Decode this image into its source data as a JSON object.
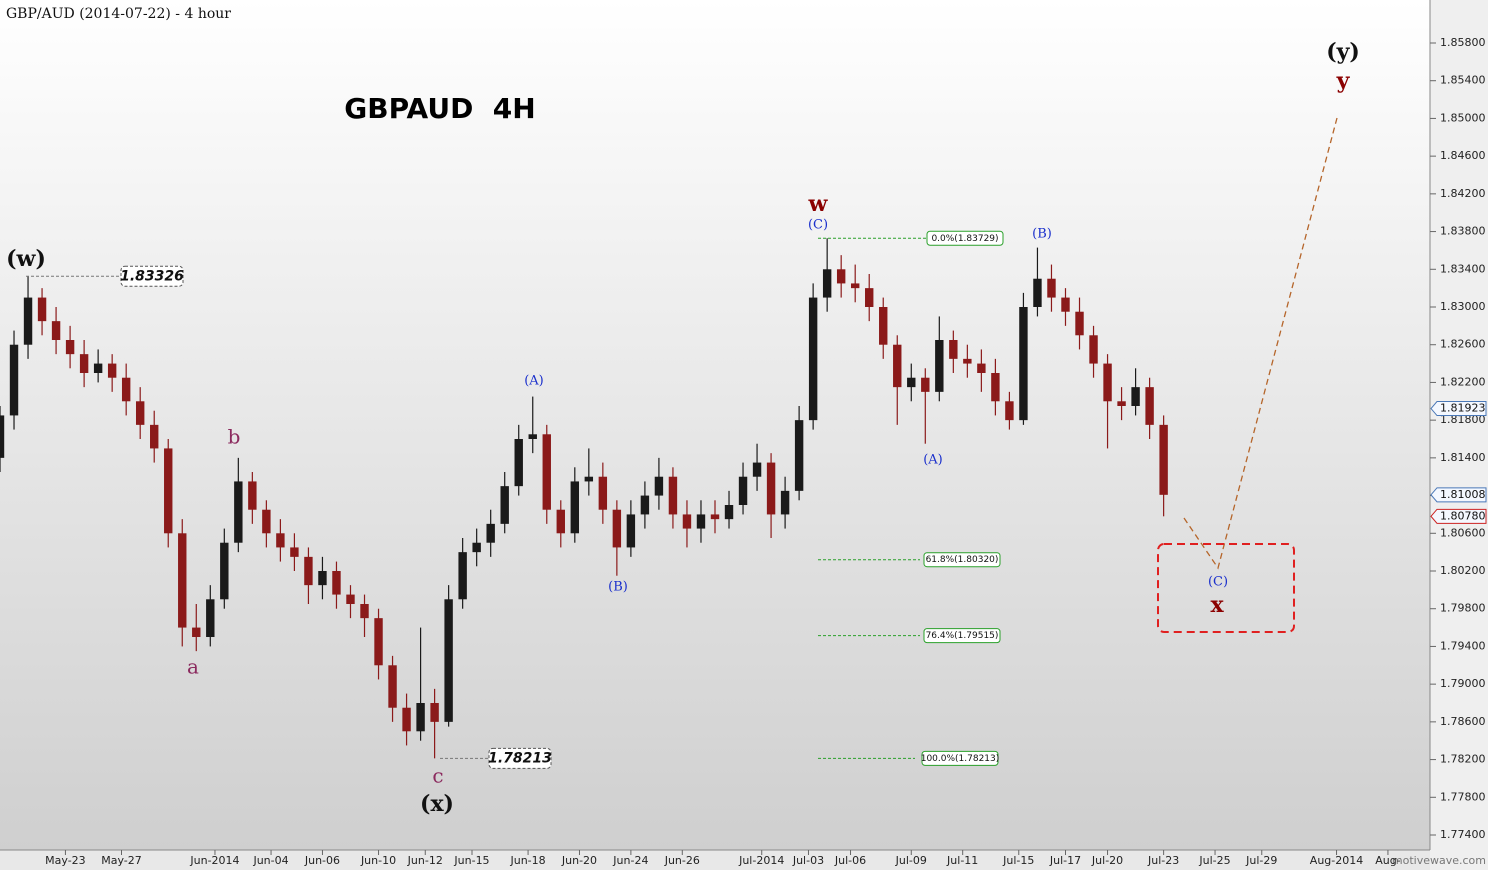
{
  "chart_data": {
    "type": "candlestick",
    "title": "GBP/AUD (2014-07-22) - 4 hour",
    "subtitle": "GBPAUD  4H",
    "watermark": "motivewave.com",
    "up_color": "#1a1a1a",
    "down_color": "#8b1a1a",
    "xlim": [
      0,
      306
    ],
    "ylim": [
      1.77241,
      1.86256
    ],
    "xticks": [
      {
        "value": 14,
        "label": "May-23"
      },
      {
        "value": 26,
        "label": "May-27"
      },
      {
        "value": 46,
        "label": "Jun-2014"
      },
      {
        "value": 58,
        "label": "Jun-04"
      },
      {
        "value": 69,
        "label": "Jun-06"
      },
      {
        "value": 81,
        "label": "Jun-10"
      },
      {
        "value": 91,
        "label": "Jun-12"
      },
      {
        "value": 101,
        "label": "Jun-15"
      },
      {
        "value": 113,
        "label": "Jun-18"
      },
      {
        "value": 124,
        "label": "Jun-20"
      },
      {
        "value": 135,
        "label": "Jun-24"
      },
      {
        "value": 146,
        "label": "Jun-26"
      },
      {
        "value": 163,
        "label": "Jul-2014"
      },
      {
        "value": 173,
        "label": "Jul-03"
      },
      {
        "value": 182,
        "label": "Jul-06"
      },
      {
        "value": 195,
        "label": "Jul-09"
      },
      {
        "value": 206,
        "label": "Jul-11"
      },
      {
        "value": 218,
        "label": "Jul-15"
      },
      {
        "value": 228,
        "label": "Jul-17"
      },
      {
        "value": 237,
        "label": "Jul-20"
      },
      {
        "value": 249,
        "label": "Jul-23"
      },
      {
        "value": 260,
        "label": "Jul-25"
      },
      {
        "value": 270,
        "label": "Jul-29"
      },
      {
        "value": 286,
        "label": "Aug-2014"
      },
      {
        "value": 297,
        "label": "Aug-"
      }
    ],
    "yticks": [
      {
        "value": 1.858,
        "label": "1.85800"
      },
      {
        "value": 1.854,
        "label": "1.85400"
      },
      {
        "value": 1.85,
        "label": "1.85000"
      },
      {
        "value": 1.846,
        "label": "1.84600"
      },
      {
        "value": 1.842,
        "label": "1.84200"
      },
      {
        "value": 1.838,
        "label": "1.83800"
      },
      {
        "value": 1.834,
        "label": "1.83400"
      },
      {
        "value": 1.83,
        "label": "1.83000"
      },
      {
        "value": 1.826,
        "label": "1.82600"
      },
      {
        "value": 1.822,
        "label": "1.82200"
      },
      {
        "value": 1.818,
        "label": "1.81800"
      },
      {
        "value": 1.814,
        "label": "1.81400"
      },
      {
        "value": 1.81,
        "label": "1.81000"
      },
      {
        "value": 1.806,
        "label": "1.80600"
      },
      {
        "value": 1.802,
        "label": "1.80200"
      },
      {
        "value": 1.798,
        "label": "1.79800"
      },
      {
        "value": 1.794,
        "label": "1.79400"
      },
      {
        "value": 1.79,
        "label": "1.79000"
      },
      {
        "value": 1.786,
        "label": "1.78600"
      },
      {
        "value": 1.782,
        "label": "1.78200"
      },
      {
        "value": 1.778,
        "label": "1.77800"
      },
      {
        "value": 1.774,
        "label": "1.77400"
      }
    ],
    "x": [
      0,
      3,
      6,
      9,
      12,
      15,
      18,
      21,
      24,
      27,
      30,
      33,
      36,
      39,
      42,
      45,
      48,
      51,
      54,
      57,
      60,
      63,
      66,
      69,
      72,
      75,
      78,
      81,
      84,
      87,
      90,
      93,
      96,
      99,
      102,
      105,
      108,
      111,
      114,
      117,
      120,
      123,
      126,
      129,
      132,
      135,
      138,
      141,
      144,
      147,
      150,
      153,
      156,
      159,
      162,
      165,
      168,
      171,
      174,
      177,
      180,
      183,
      186,
      189,
      192,
      195,
      198,
      201,
      204,
      207,
      210,
      213,
      216,
      219,
      222,
      225,
      228,
      231,
      234,
      237,
      240,
      243,
      246,
      249
    ],
    "ohlc": [
      [
        1.814,
        1.8195,
        1.8125,
        1.8185
      ],
      [
        1.8185,
        1.8275,
        1.817,
        1.826
      ],
      [
        1.826,
        1.83326,
        1.8245,
        1.831
      ],
      [
        1.831,
        1.832,
        1.827,
        1.8285
      ],
      [
        1.8285,
        1.83,
        1.825,
        1.8265
      ],
      [
        1.8265,
        1.828,
        1.8235,
        1.825
      ],
      [
        1.825,
        1.8265,
        1.8215,
        1.823
      ],
      [
        1.823,
        1.8255,
        1.822,
        1.824
      ],
      [
        1.824,
        1.825,
        1.821,
        1.8225
      ],
      [
        1.8225,
        1.824,
        1.8185,
        1.82
      ],
      [
        1.82,
        1.8215,
        1.816,
        1.8175
      ],
      [
        1.8175,
        1.819,
        1.8135,
        1.815
      ],
      [
        1.815,
        1.816,
        1.8045,
        1.806
      ],
      [
        1.806,
        1.8075,
        1.794,
        1.796
      ],
      [
        1.796,
        1.7985,
        1.7935,
        1.795
      ],
      [
        1.795,
        1.8005,
        1.794,
        1.799
      ],
      [
        1.799,
        1.8065,
        1.798,
        1.805
      ],
      [
        1.805,
        1.814,
        1.804,
        1.8115
      ],
      [
        1.8115,
        1.8125,
        1.807,
        1.8085
      ],
      [
        1.8085,
        1.8095,
        1.8045,
        1.806
      ],
      [
        1.806,
        1.8075,
        1.803,
        1.8045
      ],
      [
        1.8045,
        1.806,
        1.802,
        1.8035
      ],
      [
        1.8035,
        1.8045,
        1.7985,
        1.8005
      ],
      [
        1.8005,
        1.8035,
        1.799,
        1.802
      ],
      [
        1.802,
        1.803,
        1.798,
        1.7995
      ],
      [
        1.7995,
        1.8005,
        1.797,
        1.7985
      ],
      [
        1.7985,
        1.7995,
        1.795,
        1.797
      ],
      [
        1.797,
        1.798,
        1.7905,
        1.792
      ],
      [
        1.792,
        1.793,
        1.786,
        1.7875
      ],
      [
        1.7875,
        1.789,
        1.7835,
        1.785
      ],
      [
        1.785,
        1.796,
        1.784,
        1.788
      ],
      [
        1.788,
        1.7895,
        1.78213,
        1.786
      ],
      [
        1.786,
        1.8005,
        1.7855,
        1.799
      ],
      [
        1.799,
        1.8055,
        1.798,
        1.804
      ],
      [
        1.804,
        1.8065,
        1.8025,
        1.805
      ],
      [
        1.805,
        1.8085,
        1.8035,
        1.807
      ],
      [
        1.807,
        1.8125,
        1.806,
        1.811
      ],
      [
        1.811,
        1.8175,
        1.81,
        1.816
      ],
      [
        1.816,
        1.8205,
        1.8145,
        1.8165
      ],
      [
        1.8165,
        1.8175,
        1.807,
        1.8085
      ],
      [
        1.8085,
        1.8095,
        1.8045,
        1.806
      ],
      [
        1.806,
        1.813,
        1.805,
        1.8115
      ],
      [
        1.8115,
        1.815,
        1.81,
        1.812
      ],
      [
        1.812,
        1.8135,
        1.807,
        1.8085
      ],
      [
        1.8085,
        1.8095,
        1.8015,
        1.8045
      ],
      [
        1.8045,
        1.8095,
        1.8035,
        1.808
      ],
      [
        1.808,
        1.8115,
        1.8065,
        1.81
      ],
      [
        1.81,
        1.814,
        1.8085,
        1.812
      ],
      [
        1.812,
        1.813,
        1.8065,
        1.808
      ],
      [
        1.808,
        1.8095,
        1.8045,
        1.8065
      ],
      [
        1.8065,
        1.8095,
        1.805,
        1.808
      ],
      [
        1.808,
        1.8095,
        1.806,
        1.8075
      ],
      [
        1.8075,
        1.8105,
        1.8065,
        1.809
      ],
      [
        1.809,
        1.8135,
        1.808,
        1.812
      ],
      [
        1.812,
        1.8155,
        1.8105,
        1.8135
      ],
      [
        1.8135,
        1.8145,
        1.8055,
        1.808
      ],
      [
        1.808,
        1.812,
        1.8065,
        1.8105
      ],
      [
        1.8105,
        1.8195,
        1.8095,
        1.818
      ],
      [
        1.818,
        1.8325,
        1.817,
        1.831
      ],
      [
        1.831,
        1.83729,
        1.8295,
        1.834
      ],
      [
        1.834,
        1.8355,
        1.831,
        1.8325
      ],
      [
        1.8325,
        1.8345,
        1.8305,
        1.832
      ],
      [
        1.832,
        1.8335,
        1.8285,
        1.83
      ],
      [
        1.83,
        1.831,
        1.8245,
        1.826
      ],
      [
        1.826,
        1.827,
        1.8175,
        1.8215
      ],
      [
        1.8215,
        1.824,
        1.82,
        1.8225
      ],
      [
        1.8225,
        1.8235,
        1.8155,
        1.821
      ],
      [
        1.821,
        1.829,
        1.82,
        1.8265
      ],
      [
        1.8265,
        1.8275,
        1.823,
        1.8245
      ],
      [
        1.8245,
        1.826,
        1.8225,
        1.824
      ],
      [
        1.824,
        1.8255,
        1.821,
        1.823
      ],
      [
        1.823,
        1.8245,
        1.8185,
        1.82
      ],
      [
        1.82,
        1.821,
        1.817,
        1.818
      ],
      [
        1.818,
        1.8315,
        1.8175,
        1.83
      ],
      [
        1.83,
        1.8363,
        1.829,
        1.833
      ],
      [
        1.833,
        1.8345,
        1.8295,
        1.831
      ],
      [
        1.831,
        1.832,
        1.828,
        1.8295
      ],
      [
        1.8295,
        1.831,
        1.8255,
        1.827
      ],
      [
        1.827,
        1.828,
        1.8225,
        1.824
      ],
      [
        1.824,
        1.825,
        1.815,
        1.82
      ],
      [
        1.82,
        1.8215,
        1.818,
        1.8195
      ],
      [
        1.8195,
        1.8235,
        1.8185,
        1.8215
      ],
      [
        1.8215,
        1.8225,
        1.816,
        1.8175
      ],
      [
        1.8175,
        1.8185,
        1.8078,
        1.81008
      ]
    ],
    "fib_levels": [
      {
        "value": 1.83729,
        "label": "0.0%(1.83729)"
      },
      {
        "value": 1.8032,
        "label": "61.8%(1.80320)"
      },
      {
        "value": 1.79515,
        "label": "76.4%(1.79515)"
      },
      {
        "value": 1.78213,
        "label": "100.0%(1.78213)"
      }
    ],
    "swing_labels": [
      {
        "value": 1.83326,
        "label": "1.83326"
      },
      {
        "value": 1.78213,
        "label": "1.78213"
      }
    ],
    "price_markers": [
      {
        "value": 1.81923,
        "label": "1.81923",
        "color": "#4a78b8"
      },
      {
        "value": 1.81008,
        "label": "1.81008",
        "color": "#4a78b8"
      },
      {
        "value": 1.8078,
        "label": "1.80780",
        "color": "#cc2222"
      }
    ],
    "wave_labels": [
      "(w)",
      "a",
      "b",
      "c",
      "(x)",
      "(A)",
      "(B)",
      "w",
      "(C)",
      "(A)",
      "(B)",
      "(C)",
      "x",
      "(y)",
      "y"
    ]
  }
}
